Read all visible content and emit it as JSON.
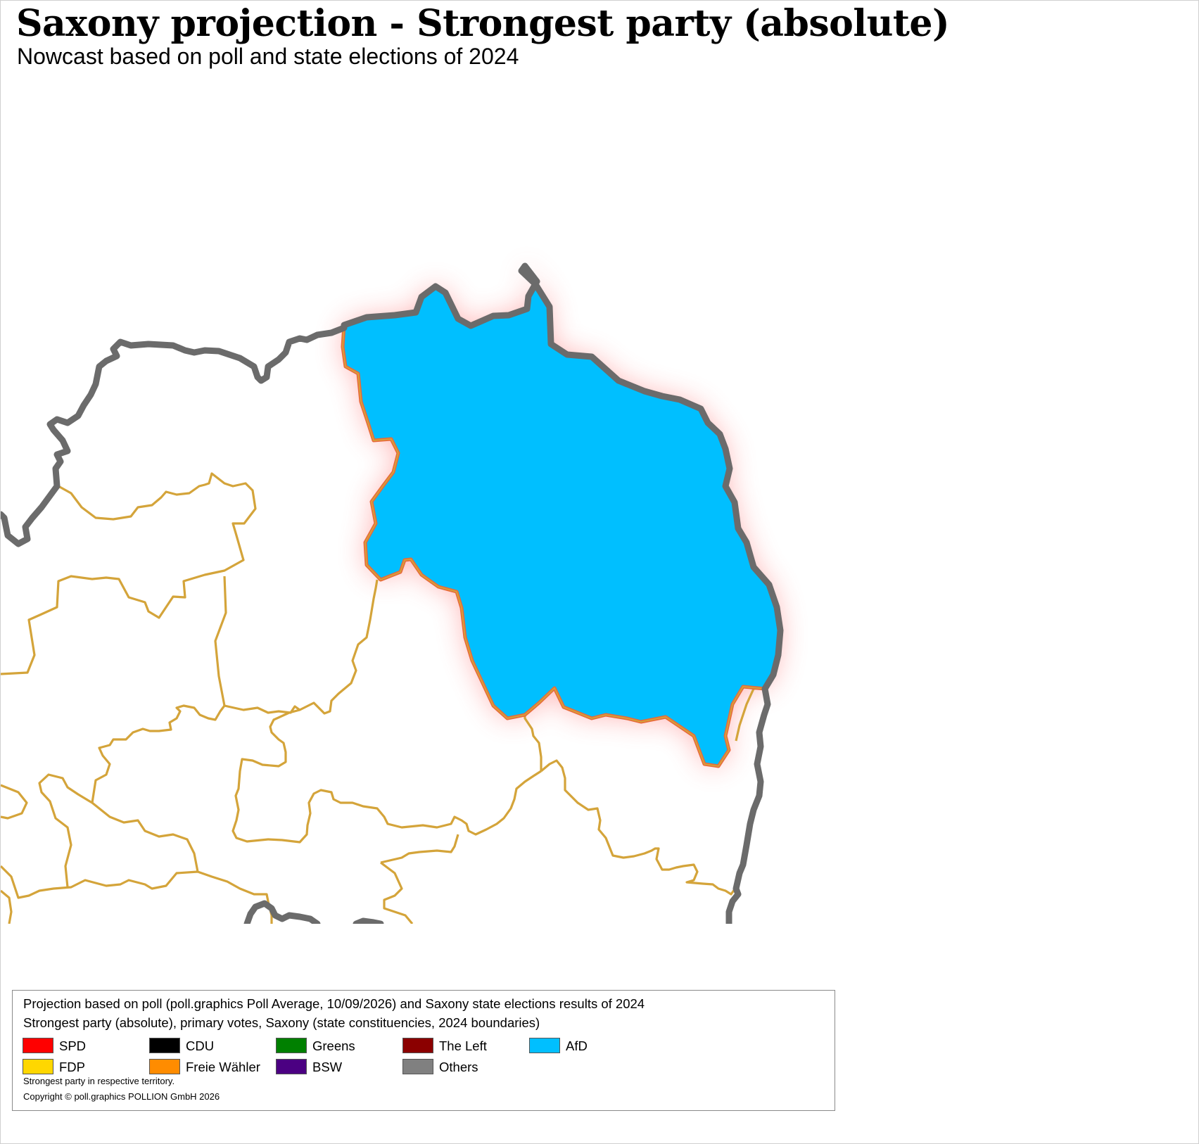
{
  "header": {
    "title": "Saxony projection - Strongest party (absolute)",
    "subtitle": "Nowcast based on poll and state elections of 2024"
  },
  "map": {
    "highlighted_region_party": "AfD",
    "highlighted_fill": "#00BFFF",
    "highlight_glow_color": "#ff6b6b",
    "state_border_color": "#6b6b6b",
    "constituency_border_color": "#d4a43a"
  },
  "legend": {
    "source_line": "Projection based on poll (poll.graphics Poll Average, 10/09/2026) and Saxony state elections results of 2024",
    "description_line": "Strongest party (absolute), primary votes, Saxony (state constituencies, 2024 boundaries)",
    "parties": [
      {
        "name": "SPD",
        "color": "#FF0000"
      },
      {
        "name": "CDU",
        "color": "#000000"
      },
      {
        "name": "Greens",
        "color": "#008000"
      },
      {
        "name": "The Left",
        "color": "#8B0000"
      },
      {
        "name": "AfD",
        "color": "#00BFFF"
      },
      {
        "name": "FDP",
        "color": "#FFD700"
      },
      {
        "name": "Freie Wähler",
        "color": "#FF8C00"
      },
      {
        "name": "BSW",
        "color": "#4B0082"
      },
      {
        "name": "Others",
        "color": "#808080"
      }
    ],
    "note": "Strongest party in respective territory.",
    "copyright": "Copyright © poll.graphics POLLION GmbH 2026"
  }
}
